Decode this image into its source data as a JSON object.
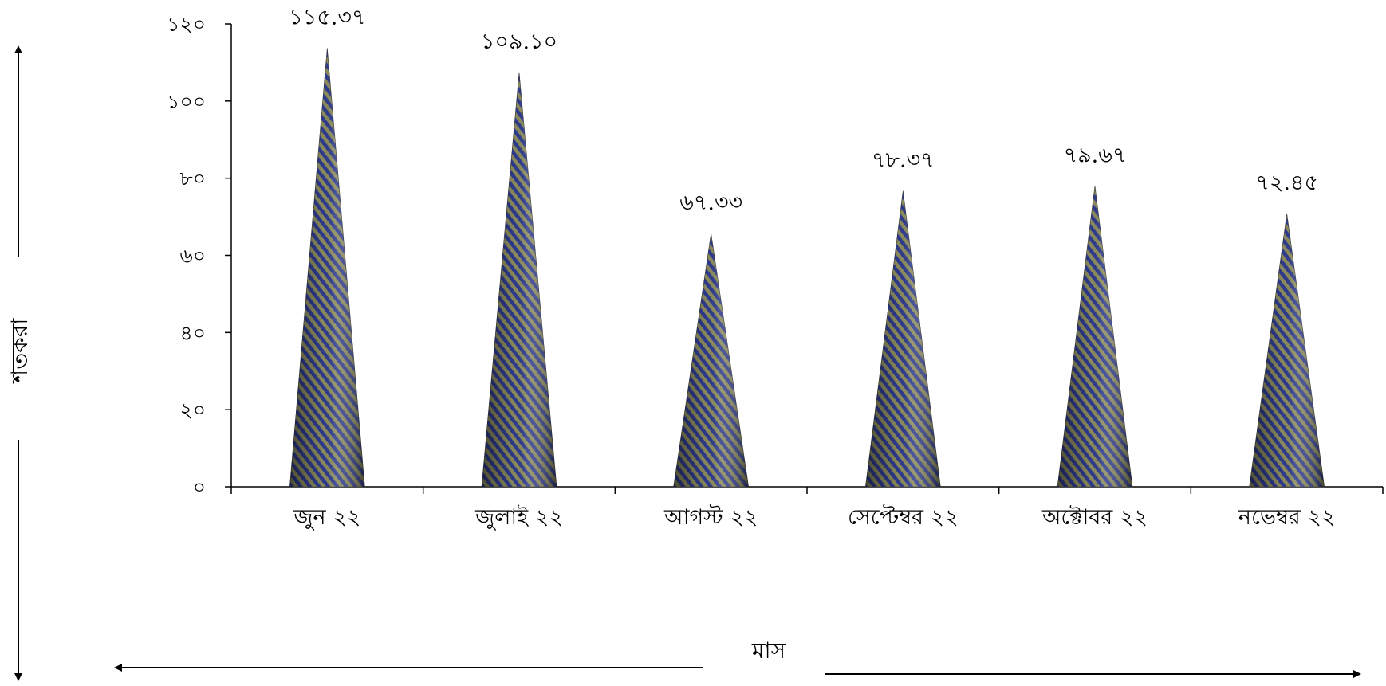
{
  "chart_data": {
    "type": "bar",
    "bar_shape": "cone",
    "categories": [
      "জুন ২২",
      "জুলাই ২২",
      "আগস্ট ২২",
      "সেপ্টেম্বর ২২",
      "অক্টোবর ২২",
      "নভেম্বর ২২"
    ],
    "values": [
      115.37,
      109.1,
      67.33,
      78.37,
      79.67,
      72.45
    ],
    "data_labels": [
      "১১৫.৩৭",
      "১০৯.১০",
      "৬৭.৩৩",
      "৭৮.৩৭",
      "৭৯.৬৭",
      "৭২.৪৫"
    ],
    "yticks": [
      0,
      20,
      40,
      60,
      80,
      100,
      120
    ],
    "ytick_labels": [
      "০",
      "২০",
      "৪০",
      "৬০",
      "৮০",
      "১০০",
      "১২০"
    ],
    "ylim": [
      0,
      120
    ],
    "xlabel": "মাস",
    "ylabel": "শতকরা",
    "title": "",
    "grid": false,
    "legend": "none",
    "colors": {
      "stripe_a": "#2e3a8c",
      "stripe_b": "#8a8a5c",
      "axis": "#000000"
    }
  }
}
